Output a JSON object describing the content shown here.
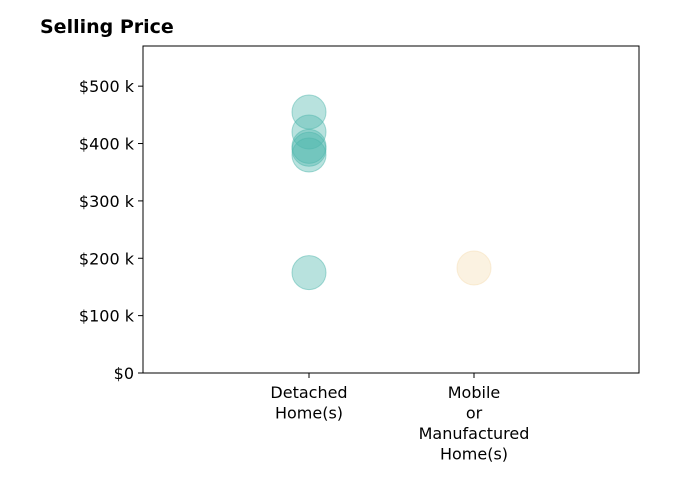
{
  "chart_data": {
    "type": "scatter",
    "title": "Selling Price",
    "xlabel": "",
    "ylabel": "",
    "categories": [
      [
        "Detached",
        "Home(s)"
      ],
      [
        "Mobile",
        "or",
        "Manufactured",
        "Home(s)"
      ]
    ],
    "ylim": [
      0,
      570000
    ],
    "yticks": [
      0,
      100000,
      200000,
      300000,
      400000,
      500000
    ],
    "ytick_labels": [
      "$0",
      "$100 k",
      "$200 k",
      "$300 k",
      "$400 k",
      "$500 k"
    ],
    "series": [
      {
        "category_index": 0,
        "color": "#4db6ac",
        "values": [
          455000,
          420000,
          395000,
          390000,
          380000,
          175000
        ]
      },
      {
        "category_index": 1,
        "color": "#f5deb3",
        "values": [
          183000
        ]
      }
    ],
    "grid": false,
    "legend": "none"
  }
}
